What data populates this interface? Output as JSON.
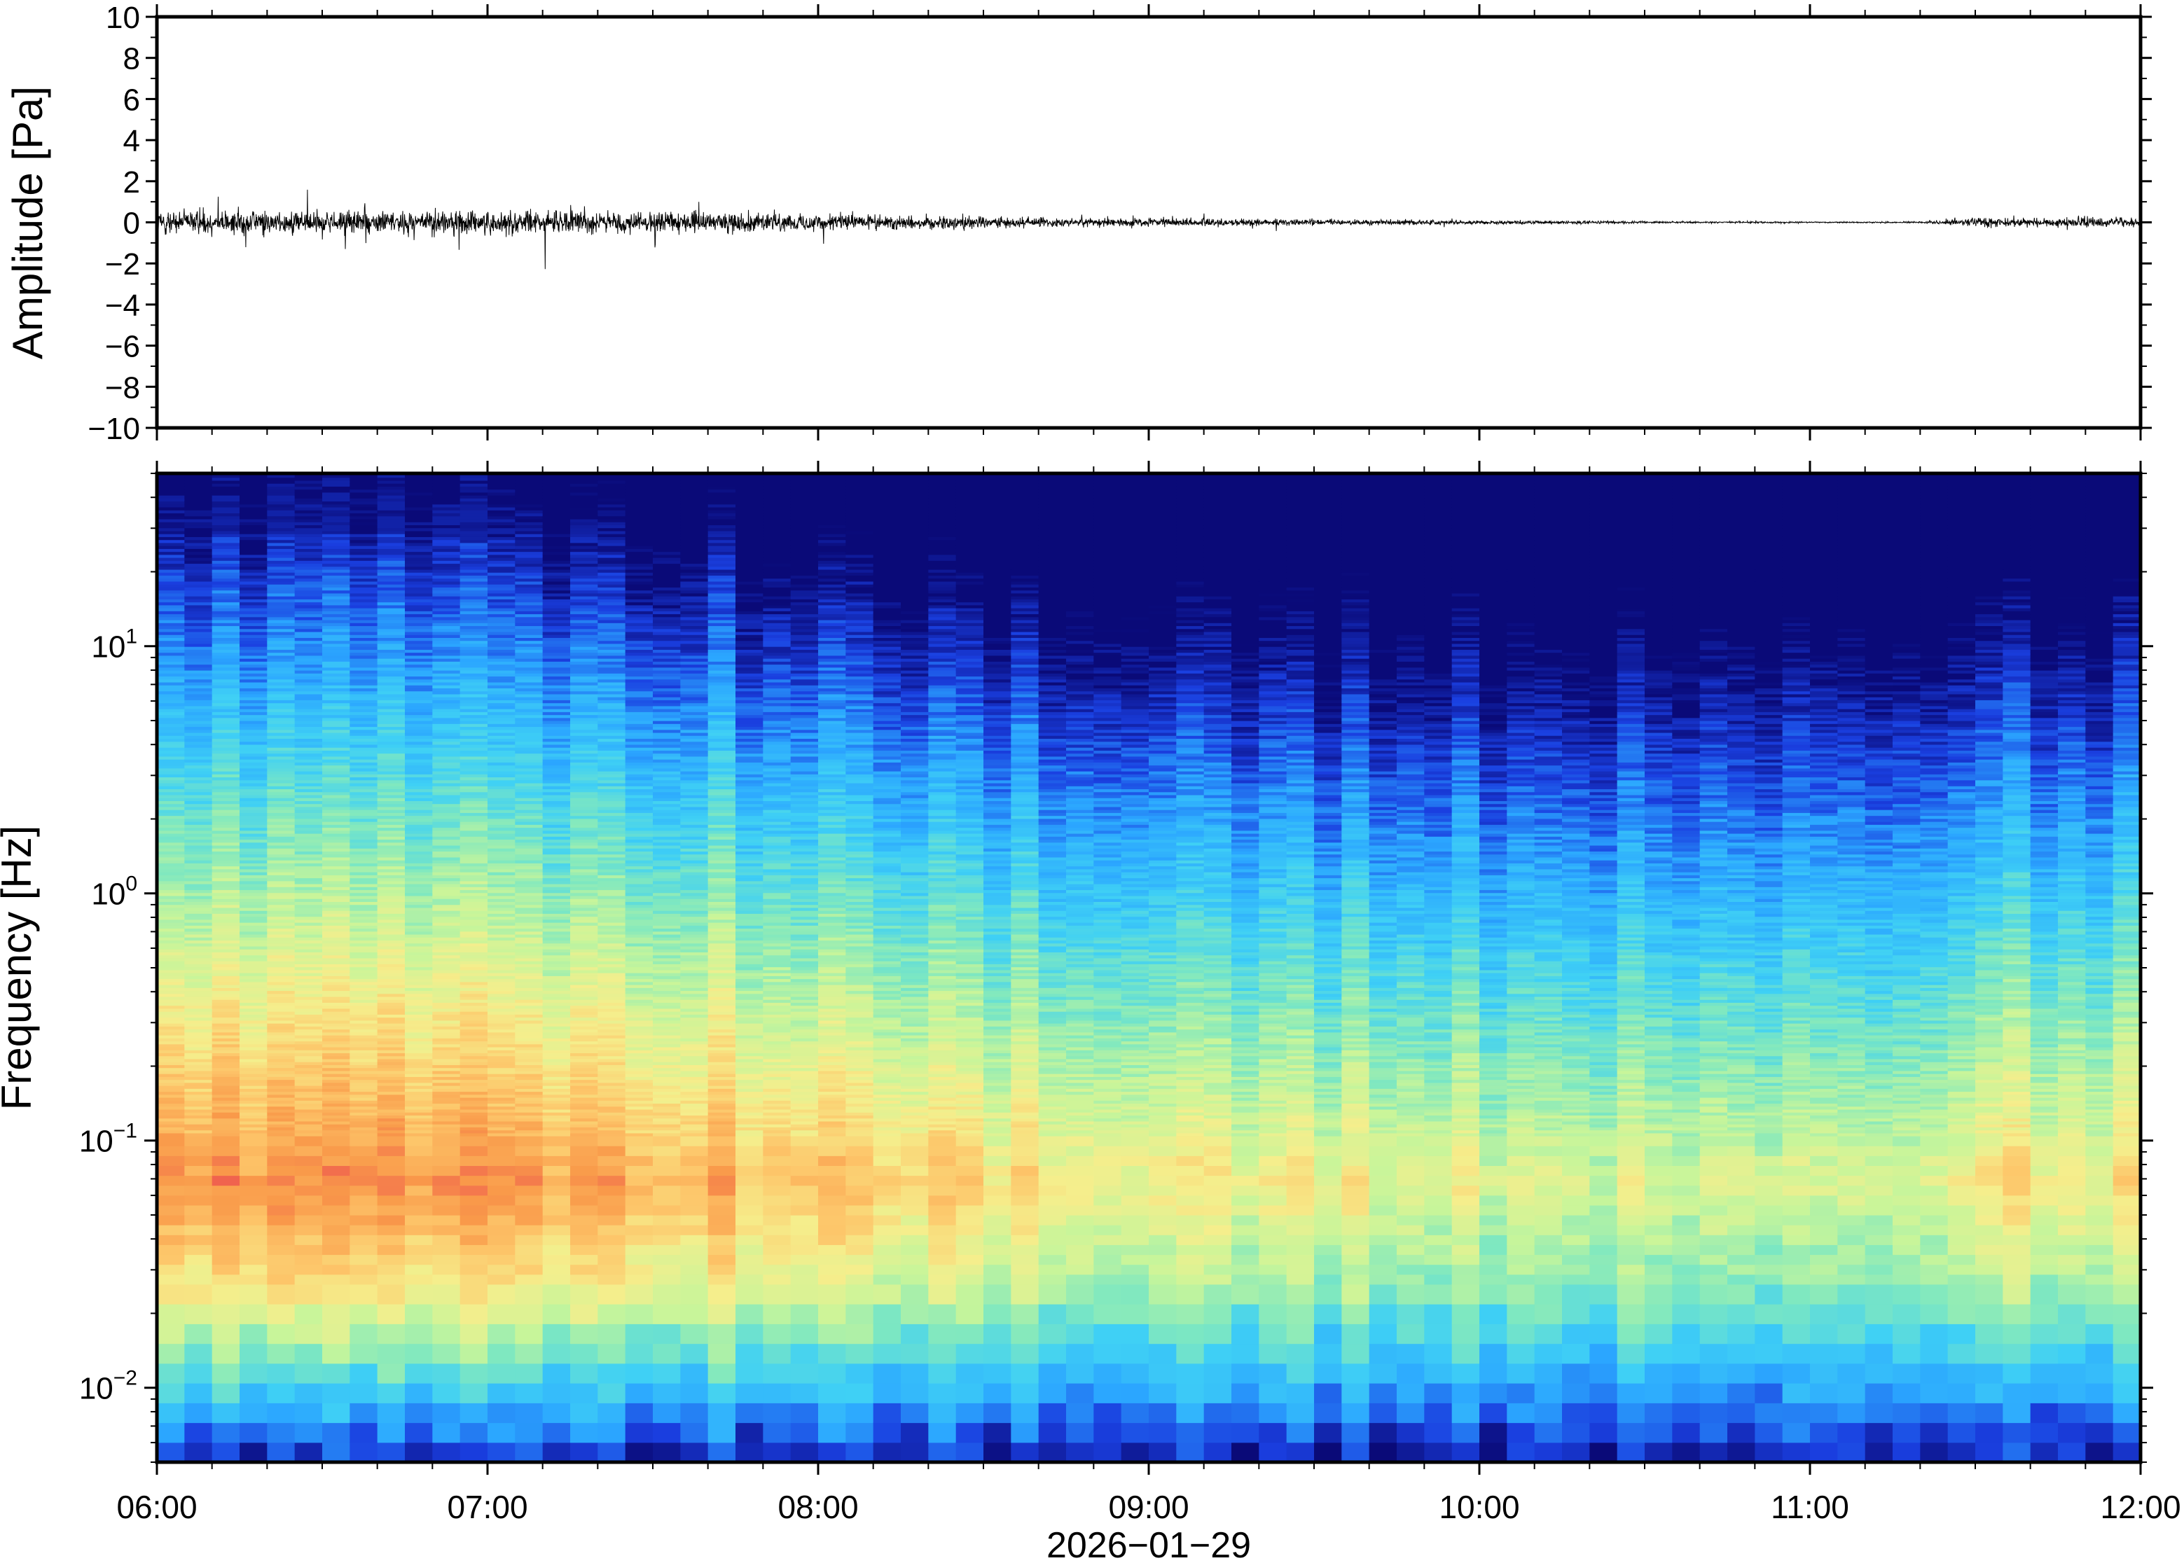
{
  "chart_data": [
    {
      "type": "line",
      "panel": "waveform",
      "ylabel": "Amplitude [Pa]",
      "ylim": [
        -10,
        10
      ],
      "y_ticks": [
        10,
        8,
        6,
        4,
        2,
        0,
        -2,
        -4,
        -6,
        -8,
        -10
      ],
      "y_tick_labels": [
        "10",
        "8",
        "6",
        "4",
        "2",
        "0",
        "−2",
        "−4",
        "−6",
        "−8",
        "−10"
      ],
      "x_range": [
        "06:00",
        "12:00"
      ],
      "envelope_hours": [
        6.0,
        6.5,
        7.0,
        7.5,
        8.0,
        8.5,
        8.75,
        9.0,
        9.5,
        10.0,
        10.5,
        11.0,
        11.33,
        11.5,
        12.0
      ],
      "envelope_amplitude_pa": [
        0.8,
        0.9,
        0.85,
        0.75,
        0.6,
        0.45,
        0.3,
        0.3,
        0.22,
        0.15,
        0.08,
        0.05,
        0.05,
        0.35,
        0.3
      ],
      "grid": false
    },
    {
      "type": "heatmap",
      "panel": "spectrogram",
      "ylabel": "Frequency [Hz]",
      "y_scale": "log",
      "ylim_hz": [
        0.005,
        50
      ],
      "y_ticks": [
        {
          "base": "10",
          "exp": "1"
        },
        {
          "base": "10",
          "exp": "0"
        },
        {
          "base": "10",
          "exp": "−1"
        },
        {
          "base": "10",
          "exp": "−2"
        }
      ],
      "x_tick_labels": [
        "06:00",
        "07:00",
        "08:00",
        "09:00",
        "10:00",
        "11:00",
        "12:00"
      ],
      "xlabel": "2026−01−29",
      "colormap": [
        "#0a0a78",
        "#1a3fe0",
        "#2ba6ff",
        "#3fd0f5",
        "#7fe8c0",
        "#c8f59a",
        "#f5ee8c",
        "#fdc66a",
        "#f99a4a",
        "#ef5a4f"
      ],
      "grid": false
    }
  ]
}
